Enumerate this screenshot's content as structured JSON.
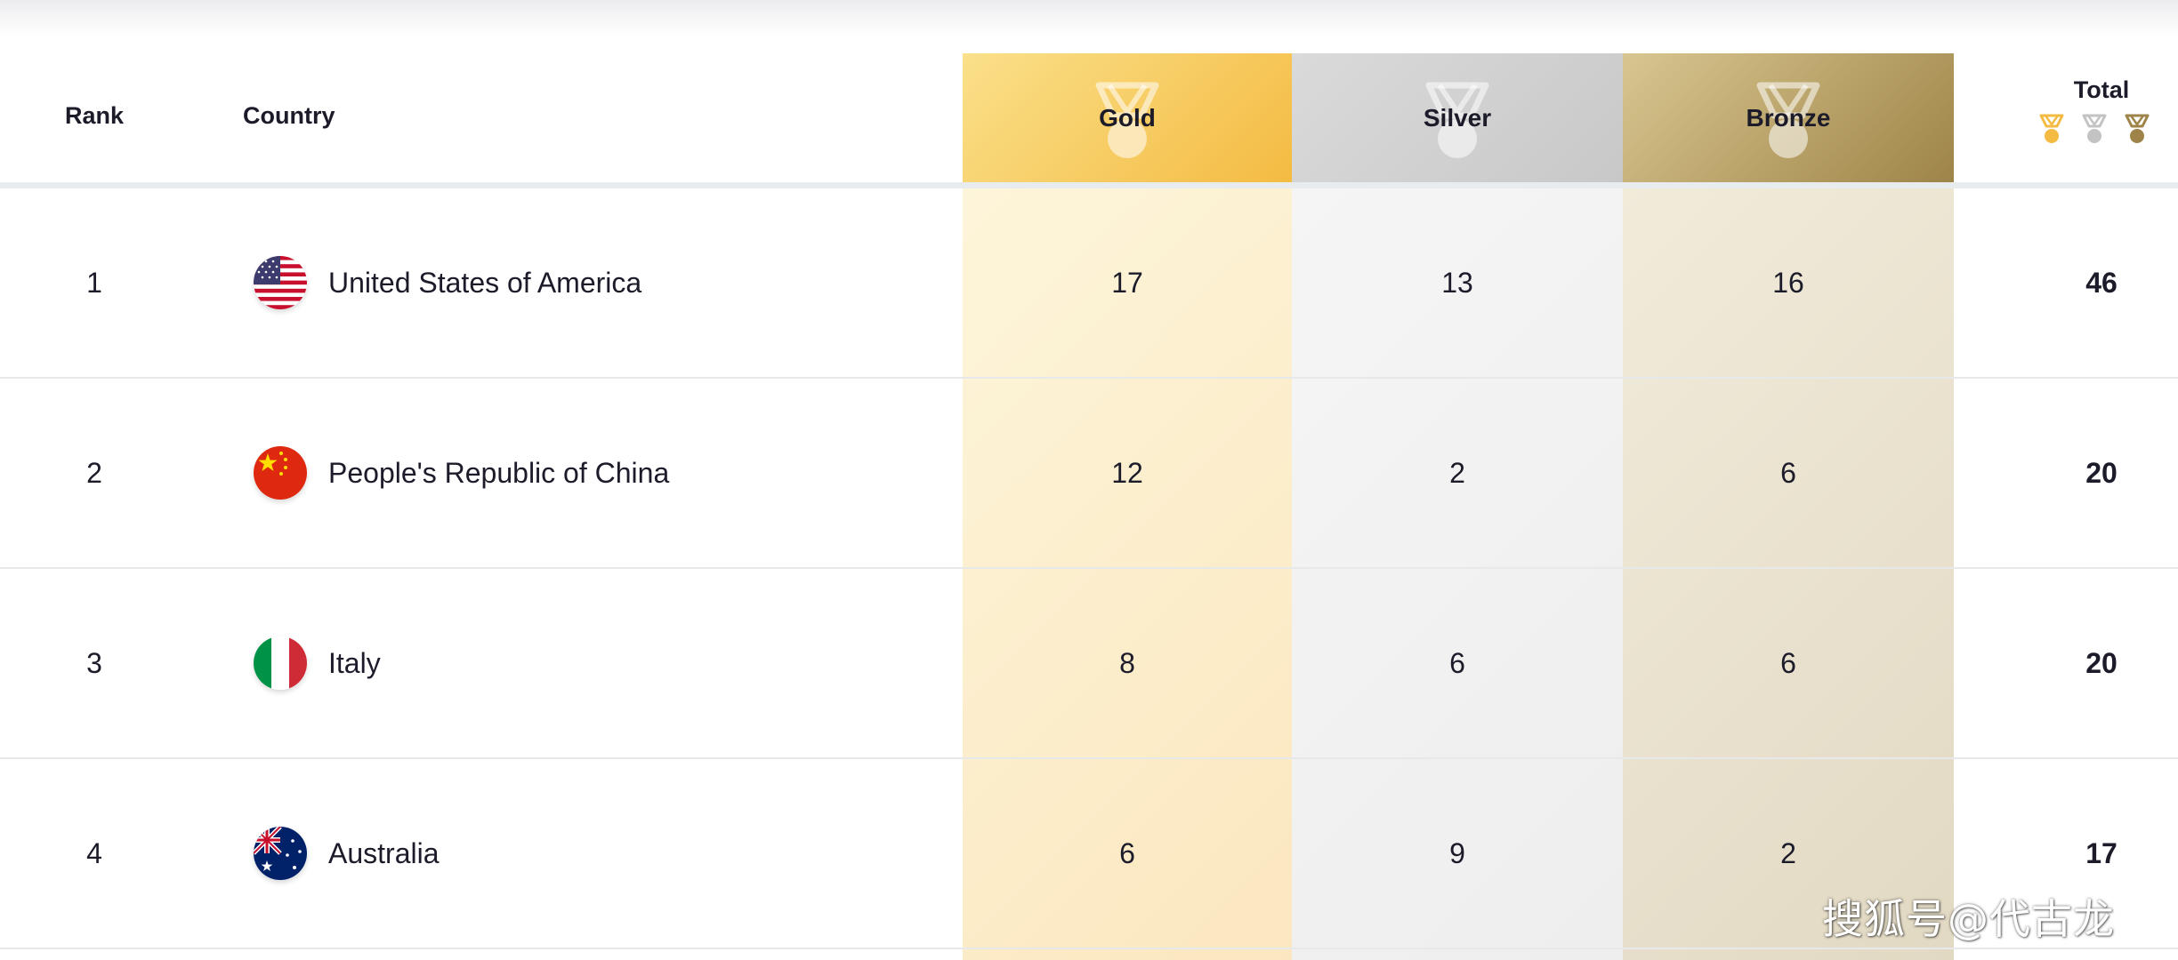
{
  "header": {
    "rank": "Rank",
    "country": "Country",
    "gold": "Gold",
    "silver": "Silver",
    "bronze": "Bronze",
    "total": "Total"
  },
  "colors": {
    "gold": "#f4bb42",
    "silver": "#c8c8c8",
    "bronze": "#9e8448",
    "text": "#1b1b2a"
  },
  "rows": [
    {
      "rank": "1",
      "country": "United States of America",
      "flag": "usa-flag-icon",
      "gold": "17",
      "silver": "13",
      "bronze": "16",
      "total": "46"
    },
    {
      "rank": "2",
      "country": "People's Republic of China",
      "flag": "china-flag-icon",
      "gold": "12",
      "silver": "2",
      "bronze": "6",
      "total": "20"
    },
    {
      "rank": "3",
      "country": "Italy",
      "flag": "italy-flag-icon",
      "gold": "8",
      "silver": "6",
      "bronze": "6",
      "total": "20"
    },
    {
      "rank": "4",
      "country": "Australia",
      "flag": "australia-flag-icon",
      "gold": "6",
      "silver": "9",
      "bronze": "2",
      "total": "17"
    }
  ],
  "watermark": "搜狐号@代古龙"
}
